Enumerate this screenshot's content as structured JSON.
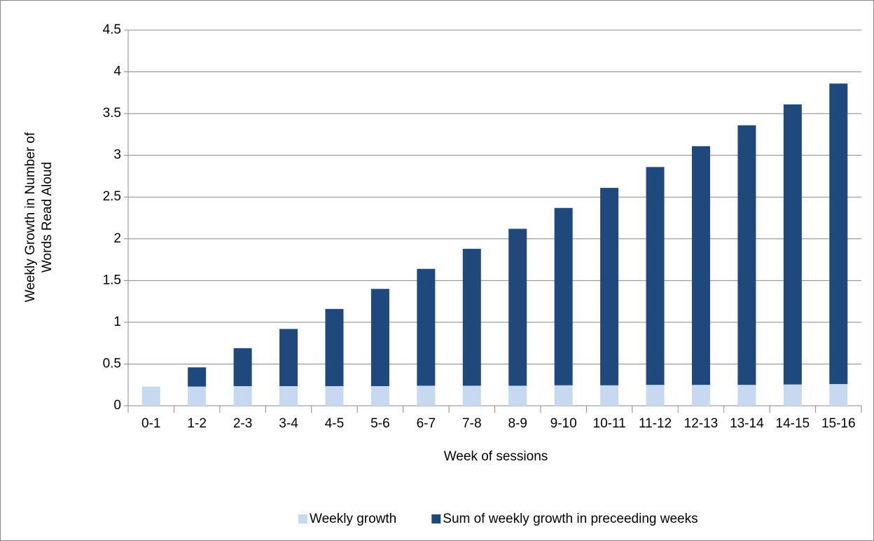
{
  "chart_data": {
    "type": "stacked_bar",
    "x_label": "Week of sessions",
    "y_label": [
      "Weekly Growth in Number of",
      "Words Read Aloud"
    ],
    "categories": [
      "0-1",
      "1-2",
      "2-3",
      "3-4",
      "4-5",
      "5-6",
      "6-7",
      "7-8",
      "8-9",
      "9-10",
      "10-11",
      "11-12",
      "12-13",
      "13-14",
      "14-15",
      "15-16"
    ],
    "series": [
      {
        "name": "Weekly growth",
        "color": "#c6d9f1",
        "values": [
          0.23,
          0.23,
          0.235,
          0.235,
          0.235,
          0.235,
          0.24,
          0.24,
          0.24,
          0.245,
          0.245,
          0.25,
          0.25,
          0.25,
          0.255,
          0.26
        ]
      },
      {
        "name": "Sum of weekly growth in preceeding weeks",
        "color": "#1f497d",
        "values": [
          null,
          0.23,
          0.455,
          0.685,
          0.925,
          1.165,
          1.4,
          1.64,
          1.88,
          2.125,
          2.365,
          2.61,
          2.86,
          3.11,
          3.355,
          3.6
        ]
      }
    ],
    "ylim": [
      0,
      4.5
    ],
    "yticks": [
      0,
      0.5,
      1,
      1.5,
      2,
      2.5,
      3,
      3.5,
      4,
      4.5
    ],
    "grid": true,
    "legend": "bottom"
  }
}
